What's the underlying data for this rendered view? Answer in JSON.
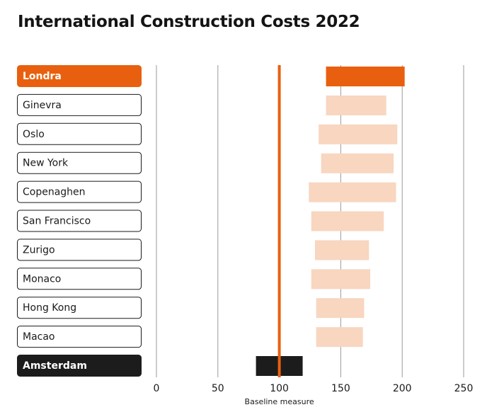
{
  "title": "International Construction Costs 2022",
  "colors": {
    "highlight": "#e8600f",
    "range_light": "#f8d6c0",
    "baseline_bar": "#1c1c1c",
    "grid": "#9a9a9a",
    "label_border": "#1a1a1a"
  },
  "chart_data": {
    "type": "bar",
    "title": "International Construction Costs 2022",
    "xlabel": "Baseline measure",
    "xlim": [
      0,
      250
    ],
    "xticks": [
      0,
      50,
      100,
      150,
      200,
      250
    ],
    "baseline_value": 100,
    "grid": true,
    "categories": [
      "Londra",
      "Ginevra",
      "Oslo",
      "New York",
      "Copenaghen",
      "San Francisco",
      "Zurigo",
      "Monaco",
      "Hong Kong",
      "Macao",
      "Amsterdam"
    ],
    "ranges": [
      {
        "city": "Londra",
        "low": 138,
        "high": 202,
        "style": "highlight"
      },
      {
        "city": "Ginevra",
        "low": 138,
        "high": 187,
        "style": "light"
      },
      {
        "city": "Oslo",
        "low": 132,
        "high": 196,
        "style": "light"
      },
      {
        "city": "New York",
        "low": 134,
        "high": 193,
        "style": "light"
      },
      {
        "city": "Copenaghen",
        "low": 124,
        "high": 195,
        "style": "light"
      },
      {
        "city": "San Francisco",
        "low": 126,
        "high": 185,
        "style": "light"
      },
      {
        "city": "Zurigo",
        "low": 129,
        "high": 173,
        "style": "light"
      },
      {
        "city": "Monaco",
        "low": 126,
        "high": 174,
        "style": "light"
      },
      {
        "city": "Hong Kong",
        "low": 130,
        "high": 169,
        "style": "light"
      },
      {
        "city": "Macao",
        "low": 130,
        "high": 168,
        "style": "light"
      },
      {
        "city": "Amsterdam",
        "low": 81,
        "high": 119,
        "style": "dark"
      }
    ]
  }
}
